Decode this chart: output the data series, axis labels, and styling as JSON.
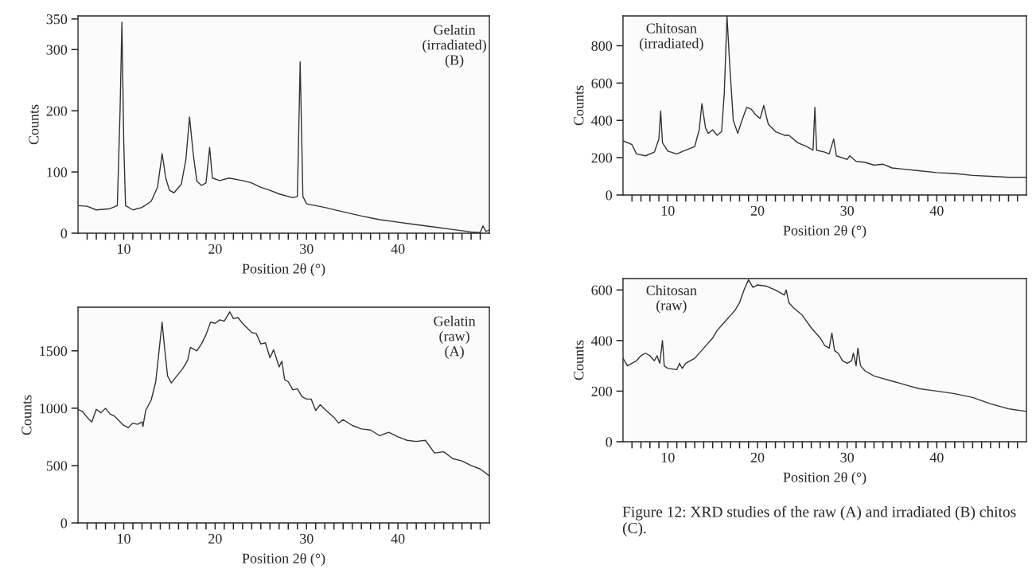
{
  "chart_data": [
    {
      "type": "line",
      "xlabel": "Position 2θ (°)",
      "ylabel": "Counts",
      "annotations": [
        "Gelatin\n(irradiated)\n(B)"
      ],
      "xlim": [
        5,
        50
      ],
      "ylim": [
        0,
        355
      ],
      "yticks": [
        0,
        100,
        200,
        300,
        350
      ],
      "xticks": [
        {
          "value": 6,
          "label": null
        },
        {
          "value": 7,
          "label": null
        },
        {
          "value": 8,
          "label": null
        },
        {
          "value": 9,
          "label": null
        },
        10,
        {
          "value": 11,
          "label": null
        },
        {
          "value": 12,
          "label": null
        },
        {
          "value": 13,
          "label": null
        },
        {
          "value": 14,
          "label": null
        },
        {
          "value": 15,
          "label": null
        },
        {
          "value": 16,
          "label": null
        },
        {
          "value": 17,
          "label": null
        },
        {
          "value": 18,
          "label": null
        },
        {
          "value": 19,
          "label": null
        },
        20,
        {
          "value": 21,
          "label": null
        },
        {
          "value": 22,
          "label": null
        },
        {
          "value": 23,
          "label": null
        },
        {
          "value": 24,
          "label": null
        },
        {
          "value": 25,
          "label": null
        },
        {
          "value": 26,
          "label": null
        },
        {
          "value": 27,
          "label": null
        },
        {
          "value": 28,
          "label": null
        },
        {
          "value": 29,
          "label": null
        },
        30,
        {
          "value": 31,
          "label": null
        },
        {
          "value": 32,
          "label": null
        },
        {
          "value": 33,
          "label": null
        },
        {
          "value": 34,
          "label": null
        },
        {
          "value": 35,
          "label": null
        },
        {
          "value": 36,
          "label": null
        },
        {
          "value": 37,
          "label": null
        },
        {
          "value": 38,
          "label": null
        },
        {
          "value": 39,
          "label": null
        },
        40,
        {
          "value": 41,
          "label": null
        },
        {
          "value": 42,
          "label": null
        },
        {
          "value": 43,
          "label": null
        },
        {
          "value": 44,
          "label": null
        },
        {
          "value": 45,
          "label": null
        },
        {
          "value": 46,
          "label": null
        },
        {
          "value": 47,
          "label": null
        },
        {
          "value": 48,
          "label": null
        },
        {
          "value": 49,
          "label": null
        }
      ],
      "grid": false,
      "legend": false,
      "series": [
        {
          "color": "#333333",
          "x": [
            5,
            6,
            7,
            8.5,
            9.3,
            9.6,
            9.8,
            10.0,
            10.2,
            11,
            12,
            13,
            13.7,
            14.2,
            14.6,
            15,
            15.5,
            16.3,
            16.8,
            17.2,
            17.6,
            18,
            18.5,
            19,
            19.4,
            19.7,
            20.5,
            21.5,
            23,
            24,
            25,
            26,
            27,
            28.5,
            29,
            29.3,
            29.6,
            30,
            32,
            34,
            36,
            38,
            40,
            42,
            44,
            46,
            48,
            49,
            49.3,
            49.6,
            50
          ],
          "values": [
            45,
            44,
            38,
            40,
            45,
            200,
            345,
            150,
            45,
            38,
            42,
            52,
            75,
            130,
            90,
            70,
            66,
            80,
            120,
            190,
            130,
            85,
            78,
            82,
            140,
            90,
            86,
            90,
            86,
            82,
            75,
            70,
            64,
            58,
            60,
            280,
            60,
            48,
            42,
            35,
            28,
            22,
            18,
            14,
            10,
            6,
            2,
            1,
            12,
            3,
            5
          ]
        }
      ]
    },
    {
      "type": "line",
      "xlabel": "Position 2θ (°)",
      "ylabel": "Counts",
      "annotations": [
        "Chitosan\n(irradiated)"
      ],
      "xlim": [
        5,
        50
      ],
      "ylim": [
        0,
        960
      ],
      "yticks": [
        0,
        200,
        400,
        600,
        800
      ],
      "xticks": [
        {
          "value": 6,
          "label": null
        },
        {
          "value": 7,
          "label": null
        },
        {
          "value": 8,
          "label": null
        },
        {
          "value": 9,
          "label": null
        },
        10,
        {
          "value": 11,
          "label": null
        },
        {
          "value": 12,
          "label": null
        },
        {
          "value": 13,
          "label": null
        },
        {
          "value": 14,
          "label": null
        },
        {
          "value": 15,
          "label": null
        },
        {
          "value": 16,
          "label": null
        },
        {
          "value": 17,
          "label": null
        },
        {
          "value": 18,
          "label": null
        },
        {
          "value": 19,
          "label": null
        },
        20,
        {
          "value": 21,
          "label": null
        },
        {
          "value": 22,
          "label": null
        },
        {
          "value": 23,
          "label": null
        },
        {
          "value": 24,
          "label": null
        },
        {
          "value": 25,
          "label": null
        },
        {
          "value": 26,
          "label": null
        },
        {
          "value": 27,
          "label": null
        },
        {
          "value": 28,
          "label": null
        },
        {
          "value": 29,
          "label": null
        },
        30,
        {
          "value": 31,
          "label": null
        },
        {
          "value": 32,
          "label": null
        },
        {
          "value": 33,
          "label": null
        },
        {
          "value": 34,
          "label": null
        },
        {
          "value": 35,
          "label": null
        },
        {
          "value": 36,
          "label": null
        },
        {
          "value": 37,
          "label": null
        },
        {
          "value": 38,
          "label": null
        },
        {
          "value": 39,
          "label": null
        },
        40,
        {
          "value": 41,
          "label": null
        },
        {
          "value": 42,
          "label": null
        },
        {
          "value": 43,
          "label": null
        },
        {
          "value": 44,
          "label": null
        },
        {
          "value": 45,
          "label": null
        },
        {
          "value": 46,
          "label": null
        },
        {
          "value": 47,
          "label": null
        },
        {
          "value": 48,
          "label": null
        },
        {
          "value": 49,
          "label": null
        }
      ],
      "grid": false,
      "legend": false,
      "series": [
        {
          "color": "#333333",
          "x": [
            5,
            6,
            6.5,
            7.5,
            8.5,
            9,
            9.2,
            9.4,
            10,
            11,
            12,
            13,
            13.5,
            13.8,
            14.2,
            14.5,
            15,
            15.5,
            16,
            16.3,
            16.6,
            16.9,
            17.3,
            17.8,
            18.2,
            18.8,
            19.3,
            19.8,
            20.3,
            20.7,
            21.2,
            22,
            23,
            23.5,
            24.5,
            25.5,
            26.2,
            26.4,
            26.6,
            27.5,
            28,
            28.5,
            28.8,
            30,
            30.3,
            31,
            32,
            33,
            34,
            35,
            36,
            38,
            40,
            42,
            44,
            46,
            48,
            50
          ],
          "values": [
            290,
            270,
            220,
            210,
            230,
            300,
            450,
            280,
            235,
            220,
            240,
            260,
            350,
            490,
            360,
            330,
            350,
            320,
            340,
            550,
            960,
            700,
            400,
            330,
            390,
            470,
            460,
            430,
            410,
            480,
            380,
            340,
            320,
            320,
            280,
            260,
            240,
            470,
            240,
            230,
            220,
            300,
            210,
            190,
            210,
            180,
            175,
            160,
            165,
            145,
            140,
            130,
            120,
            115,
            105,
            100,
            95,
            95
          ]
        }
      ]
    },
    {
      "type": "line",
      "xlabel": "Position 2θ (°)",
      "ylabel": "Counts",
      "annotations": [
        "Gelatin\n(raw)\n(A)"
      ],
      "xlim": [
        5,
        50
      ],
      "ylim": [
        0,
        1880
      ],
      "yticks": [
        0,
        500,
        1000,
        1500
      ],
      "xticks": [
        {
          "value": 6,
          "label": null
        },
        {
          "value": 7,
          "label": null
        },
        {
          "value": 8,
          "label": null
        },
        {
          "value": 9,
          "label": null
        },
        10,
        {
          "value": 11,
          "label": null
        },
        {
          "value": 12,
          "label": null
        },
        {
          "value": 13,
          "label": null
        },
        {
          "value": 14,
          "label": null
        },
        {
          "value": 15,
          "label": null
        },
        {
          "value": 16,
          "label": null
        },
        {
          "value": 17,
          "label": null
        },
        {
          "value": 18,
          "label": null
        },
        {
          "value": 19,
          "label": null
        },
        20,
        {
          "value": 21,
          "label": null
        },
        {
          "value": 22,
          "label": null
        },
        {
          "value": 23,
          "label": null
        },
        {
          "value": 24,
          "label": null
        },
        {
          "value": 25,
          "label": null
        },
        {
          "value": 26,
          "label": null
        },
        {
          "value": 27,
          "label": null
        },
        {
          "value": 28,
          "label": null
        },
        {
          "value": 29,
          "label": null
        },
        30,
        {
          "value": 31,
          "label": null
        },
        {
          "value": 32,
          "label": null
        },
        {
          "value": 33,
          "label": null
        },
        {
          "value": 34,
          "label": null
        },
        {
          "value": 35,
          "label": null
        },
        {
          "value": 36,
          "label": null
        },
        {
          "value": 37,
          "label": null
        },
        {
          "value": 38,
          "label": null
        },
        {
          "value": 39,
          "label": null
        },
        40,
        {
          "value": 41,
          "label": null
        },
        {
          "value": 42,
          "label": null
        },
        {
          "value": 43,
          "label": null
        },
        {
          "value": 44,
          "label": null
        },
        {
          "value": 45,
          "label": null
        },
        {
          "value": 46,
          "label": null
        },
        {
          "value": 47,
          "label": null
        },
        {
          "value": 48,
          "label": null
        },
        {
          "value": 49,
          "label": null
        }
      ],
      "grid": false,
      "legend": false,
      "series": [
        {
          "color": "#333333",
          "x": [
            5,
            5.5,
            6,
            6.5,
            7,
            7.5,
            8,
            8.5,
            9,
            9.5,
            10,
            10.5,
            11,
            11.5,
            12,
            12.1,
            12.4,
            13,
            13.5,
            14,
            14.2,
            14.5,
            14.8,
            15.2,
            16,
            16.5,
            17,
            17.3,
            18,
            18.5,
            19,
            19.5,
            20,
            20.5,
            21,
            21.6,
            22,
            22.5,
            23,
            23.5,
            24,
            24.5,
            25,
            25.5,
            26,
            26.4,
            27,
            27.3,
            27.6,
            28,
            28.5,
            29,
            29.5,
            30,
            30.5,
            31,
            31.5,
            32,
            33,
            33.5,
            34,
            35,
            36,
            37,
            38,
            39,
            40,
            41,
            42,
            43,
            44,
            45,
            46,
            47,
            48,
            49,
            50
          ],
          "values": [
            990,
            970,
            920,
            880,
            990,
            960,
            1000,
            950,
            930,
            890,
            850,
            830,
            870,
            860,
            880,
            840,
            980,
            1070,
            1230,
            1600,
            1750,
            1500,
            1280,
            1220,
            1300,
            1350,
            1420,
            1530,
            1500,
            1560,
            1640,
            1750,
            1740,
            1770,
            1760,
            1840,
            1780,
            1790,
            1740,
            1700,
            1660,
            1650,
            1560,
            1570,
            1440,
            1510,
            1360,
            1410,
            1250,
            1230,
            1160,
            1170,
            1100,
            1080,
            1080,
            980,
            1030,
            990,
            920,
            870,
            900,
            850,
            820,
            810,
            760,
            790,
            750,
            720,
            710,
            720,
            610,
            620,
            560,
            540,
            500,
            470,
            410
          ]
        }
      ]
    },
    {
      "type": "line",
      "xlabel": "Position 2θ (°)",
      "ylabel": "Counts",
      "annotations": [
        "Chitosan\n(raw)",
        "Figure 12: XRD studies of the raw (A) and irradiated (B) chitos (C)."
      ],
      "xlim": [
        5,
        50
      ],
      "ylim": [
        0,
        645
      ],
      "yticks": [
        0,
        200,
        400,
        600
      ],
      "xticks": [
        {
          "value": 6,
          "label": null
        },
        {
          "value": 7,
          "label": null
        },
        {
          "value": 8,
          "label": null
        },
        {
          "value": 9,
          "label": null
        },
        10,
        {
          "value": 11,
          "label": null
        },
        {
          "value": 12,
          "label": null
        },
        {
          "value": 13,
          "label": null
        },
        {
          "value": 14,
          "label": null
        },
        {
          "value": 15,
          "label": null
        },
        {
          "value": 16,
          "label": null
        },
        {
          "value": 17,
          "label": null
        },
        {
          "value": 18,
          "label": null
        },
        {
          "value": 19,
          "label": null
        },
        20,
        {
          "value": 21,
          "label": null
        },
        {
          "value": 22,
          "label": null
        },
        {
          "value": 23,
          "label": null
        },
        {
          "value": 24,
          "label": null
        },
        {
          "value": 25,
          "label": null
        },
        {
          "value": 26,
          "label": null
        },
        {
          "value": 27,
          "label": null
        },
        {
          "value": 28,
          "label": null
        },
        {
          "value": 29,
          "label": null
        },
        30,
        {
          "value": 31,
          "label": null
        },
        {
          "value": 32,
          "label": null
        },
        {
          "value": 33,
          "label": null
        },
        {
          "value": 34,
          "label": null
        },
        {
          "value": 35,
          "label": null
        },
        {
          "value": 36,
          "label": null
        },
        {
          "value": 37,
          "label": null
        },
        {
          "value": 38,
          "label": null
        },
        {
          "value": 39,
          "label": null
        },
        40,
        {
          "value": 41,
          "label": null
        },
        {
          "value": 42,
          "label": null
        },
        {
          "value": 43,
          "label": null
        },
        {
          "value": 44,
          "label": null
        },
        {
          "value": 45,
          "label": null
        },
        {
          "value": 46,
          "label": null
        },
        {
          "value": 47,
          "label": null
        },
        {
          "value": 48,
          "label": null
        },
        {
          "value": 49,
          "label": null
        }
      ],
      "grid": false,
      "legend": false,
      "series": [
        {
          "color": "#333333",
          "x": [
            5,
            5.5,
            6,
            6.5,
            7,
            7.5,
            8,
            8.5,
            8.8,
            9.1,
            9.4,
            9.6,
            10,
            11,
            11.3,
            11.6,
            12,
            13,
            14,
            15,
            15.5,
            16,
            16.5,
            17,
            17.5,
            18,
            18.5,
            19,
            19.5,
            20,
            21,
            22,
            23,
            23.2,
            23.5,
            24,
            25,
            26,
            27,
            27.5,
            28,
            28.3,
            28.6,
            29,
            29.5,
            30,
            30.5,
            30.7,
            31,
            31.2,
            31.5,
            32,
            33,
            34,
            35,
            36,
            37,
            38,
            39,
            40,
            42,
            44,
            46,
            48,
            50
          ],
          "values": [
            330,
            300,
            310,
            320,
            340,
            350,
            340,
            320,
            340,
            310,
            400,
            300,
            290,
            285,
            310,
            290,
            310,
            330,
            370,
            410,
            440,
            460,
            480,
            500,
            520,
            550,
            600,
            640,
            610,
            620,
            615,
            600,
            580,
            600,
            550,
            530,
            500,
            450,
            410,
            380,
            370,
            430,
            360,
            350,
            320,
            310,
            320,
            350,
            300,
            370,
            300,
            280,
            260,
            250,
            240,
            230,
            220,
            210,
            205,
            200,
            190,
            175,
            150,
            130,
            120
          ]
        }
      ]
    }
  ]
}
